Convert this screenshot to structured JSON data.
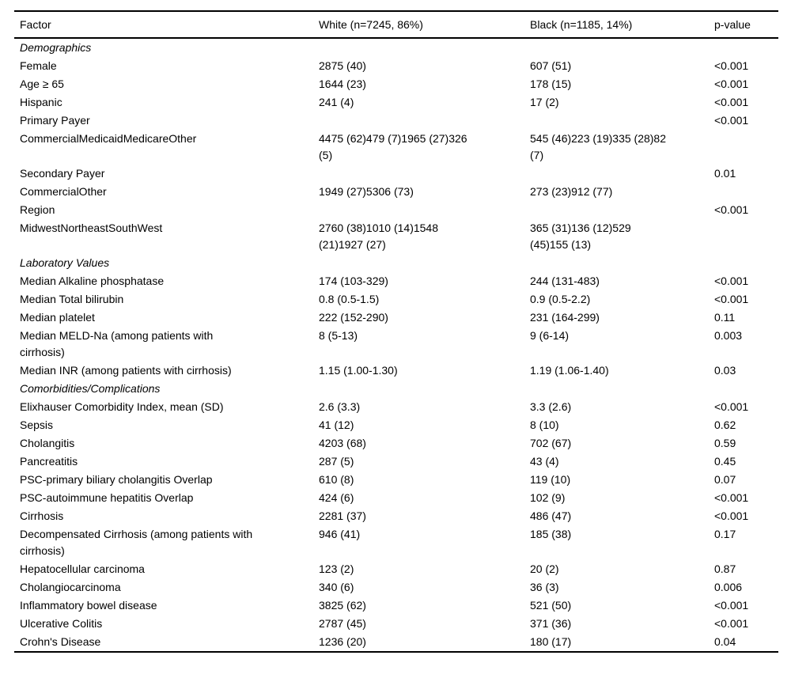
{
  "page": {
    "background_color": "#ffffff",
    "text_color": "#000000",
    "rule_color": "#000000"
  },
  "table": {
    "columns": [
      {
        "key": "factor",
        "label": "Factor"
      },
      {
        "key": "white",
        "label": "White (n=7245, 86%)"
      },
      {
        "key": "black",
        "label": "Black (n=1185, 14%)"
      },
      {
        "key": "p",
        "label": "p-value"
      }
    ],
    "rows": [
      {
        "type": "section",
        "factor": "Demographics",
        "white": "",
        "black": "",
        "p": ""
      },
      {
        "type": "data",
        "factor": "Female",
        "white": "2875 (40)",
        "black": "607 (51)",
        "p": "<0.001"
      },
      {
        "type": "data",
        "factor": "Age ≥ 65",
        "white": "1644 (23)",
        "black": "178 (15)",
        "p": "<0.001"
      },
      {
        "type": "data",
        "factor": "Hispanic",
        "white": "241 (4)",
        "black": "17 (2)",
        "p": "<0.001"
      },
      {
        "type": "data",
        "factor": "Primary Payer",
        "white": "",
        "black": "",
        "p": "<0.001"
      },
      {
        "type": "data",
        "factor": "CommercialMedicaidMedicareOther",
        "white": "4475 (62)479 (7)1965 (27)326\n(5)",
        "black": "545 (46)223 (19)335 (28)82\n(7)",
        "p": ""
      },
      {
        "type": "data",
        "factor": "Secondary Payer",
        "white": "",
        "black": "",
        "p": "0.01"
      },
      {
        "type": "data",
        "factor": "CommercialOther",
        "white": "1949 (27)5306 (73)",
        "black": "273 (23)912 (77)",
        "p": ""
      },
      {
        "type": "data",
        "factor": "Region",
        "white": "",
        "black": "",
        "p": "<0.001"
      },
      {
        "type": "data",
        "factor": "MidwestNortheastSouthWest",
        "white": "2760 (38)1010 (14)1548\n(21)1927 (27)",
        "black": "365 (31)136 (12)529\n(45)155 (13)",
        "p": ""
      },
      {
        "type": "section",
        "factor": "Laboratory Values",
        "white": "",
        "black": "",
        "p": ""
      },
      {
        "type": "data",
        "factor": "Median Alkaline phosphatase",
        "white": "174 (103-329)",
        "black": "244 (131-483)",
        "p": "<0.001"
      },
      {
        "type": "data",
        "factor": "Median Total bilirubin",
        "white": "0.8 (0.5-1.5)",
        "black": "0.9 (0.5-2.2)",
        "p": "<0.001"
      },
      {
        "type": "data",
        "factor": "Median platelet",
        "white": "222 (152-290)",
        "black": "231 (164-299)",
        "p": "0.11"
      },
      {
        "type": "data",
        "factor": "Median MELD-Na (among patients with\ncirrhosis)",
        "white": "8 (5-13)",
        "black": "9 (6-14)",
        "p": "0.003"
      },
      {
        "type": "data",
        "factor": "Median INR (among patients with cirrhosis)",
        "white": "1.15 (1.00-1.30)",
        "black": "1.19 (1.06-1.40)",
        "p": "0.03"
      },
      {
        "type": "section",
        "factor": "Comorbidities/Complications",
        "white": "",
        "black": "",
        "p": ""
      },
      {
        "type": "data",
        "factor": "Elixhauser Comorbidity Index, mean (SD)",
        "white": "2.6 (3.3)",
        "black": "3.3 (2.6)",
        "p": "<0.001"
      },
      {
        "type": "data",
        "factor": "Sepsis",
        "white": "41 (12)",
        "black": "8 (10)",
        "p": "0.62"
      },
      {
        "type": "data",
        "factor": "Cholangitis",
        "white": "4203 (68)",
        "black": "702 (67)",
        "p": "0.59"
      },
      {
        "type": "data",
        "factor": "Pancreatitis",
        "white": "287 (5)",
        "black": "43 (4)",
        "p": "0.45"
      },
      {
        "type": "data",
        "factor": "PSC-primary biliary cholangitis Overlap",
        "white": "610 (8)",
        "black": "119 (10)",
        "p": "0.07"
      },
      {
        "type": "data",
        "factor": "PSC-autoimmune hepatitis Overlap",
        "white": "424 (6)",
        "black": "102 (9)",
        "p": "<0.001"
      },
      {
        "type": "data",
        "factor": "Cirrhosis",
        "white": "2281 (37)",
        "black": "486 (47)",
        "p": "<0.001"
      },
      {
        "type": "data",
        "factor": "Decompensated Cirrhosis (among patients with\ncirrhosis)",
        "white": "946 (41)",
        "black": "185 (38)",
        "p": "0.17"
      },
      {
        "type": "data",
        "factor": "Hepatocellular carcinoma",
        "white": "123 (2)",
        "black": "20 (2)",
        "p": "0.87"
      },
      {
        "type": "data",
        "factor": "Cholangiocarcinoma",
        "white": "340 (6)",
        "black": "36 (3)",
        "p": "0.006"
      },
      {
        "type": "data",
        "factor": "Inflammatory bowel disease",
        "white": "3825 (62)",
        "black": "521 (50)",
        "p": "<0.001"
      },
      {
        "type": "data",
        "factor": "Ulcerative Colitis",
        "white": "2787 (45)",
        "black": "371 (36)",
        "p": "<0.001"
      },
      {
        "type": "data",
        "factor": "Crohn's Disease",
        "white": "1236 (20)",
        "black": "180 (17)",
        "p": "0.04"
      }
    ]
  }
}
